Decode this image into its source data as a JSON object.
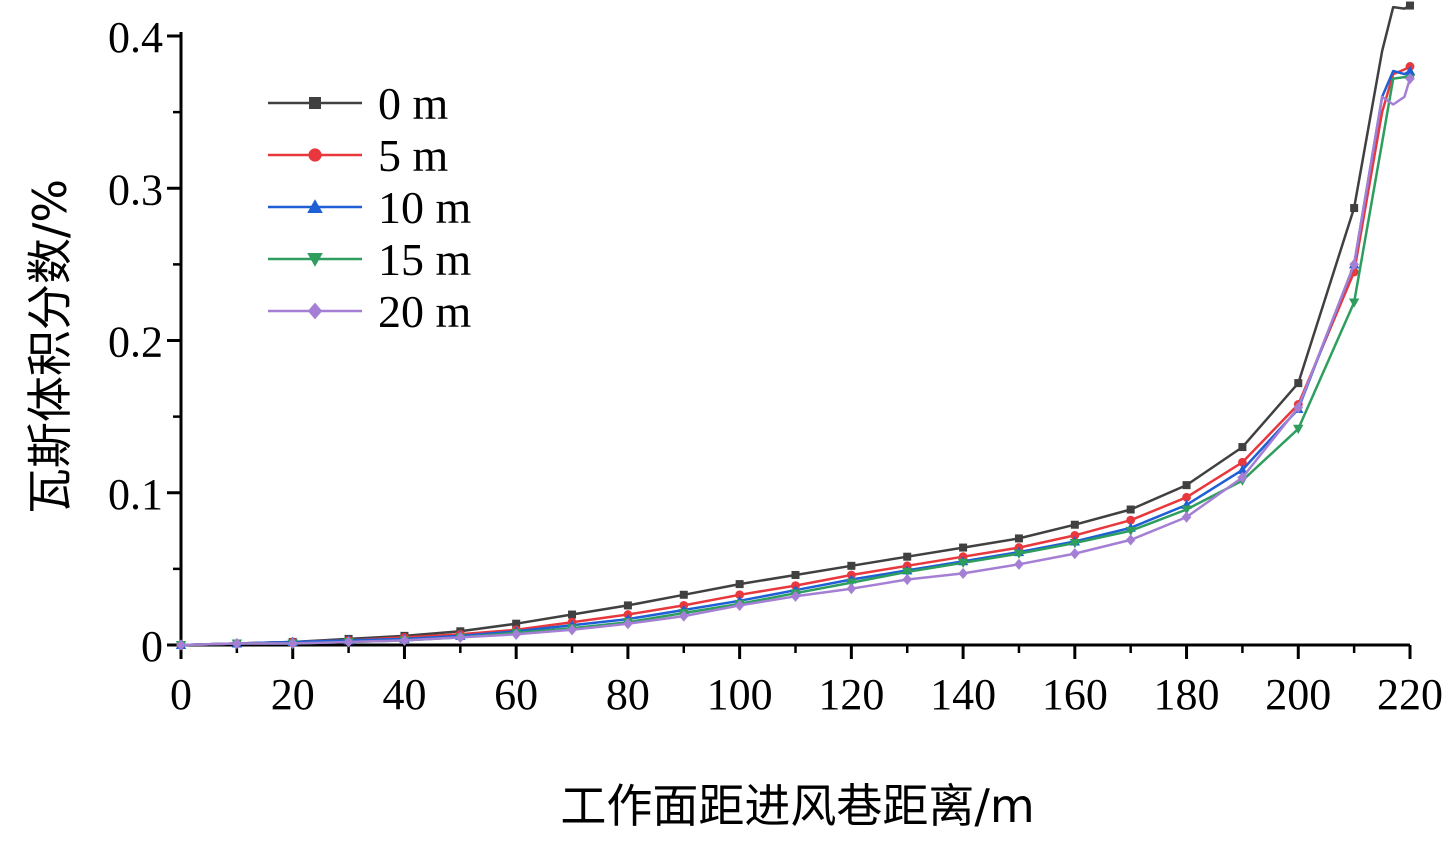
{
  "chart_data": {
    "type": "line",
    "xlabel": "工作面距进风巷距离/m",
    "ylabel": "瓦斯体积分数/%",
    "xlim": [
      0,
      220
    ],
    "ylim": [
      0,
      0.4
    ],
    "xticks": [
      0,
      20,
      40,
      60,
      80,
      100,
      120,
      140,
      160,
      180,
      200,
      220
    ],
    "yticks": [
      0,
      0.1,
      0.2,
      0.3,
      0.4
    ],
    "ytick_labels": [
      "0",
      "0.1",
      "0.2",
      "0.3",
      "0.4"
    ],
    "grid": false,
    "legend_position": "top-left",
    "x": [
      0,
      10,
      20,
      30,
      40,
      50,
      60,
      70,
      80,
      90,
      100,
      110,
      120,
      130,
      140,
      150,
      160,
      170,
      180,
      190,
      200,
      210,
      215,
      217,
      219,
      220
    ],
    "series": [
      {
        "name": "0 m",
        "color": "#404040",
        "marker": "square",
        "values": [
          0,
          0.001,
          0.002,
          0.004,
          0.006,
          0.009,
          0.014,
          0.02,
          0.026,
          0.033,
          0.04,
          0.046,
          0.052,
          0.058,
          0.064,
          0.07,
          0.079,
          0.089,
          0.105,
          0.13,
          0.172,
          0.287,
          0.39,
          0.419,
          0.418,
          0.42
        ]
      },
      {
        "name": "5 m",
        "color": "#e8383d",
        "marker": "circle",
        "values": [
          0,
          0.001,
          0.002,
          0.003,
          0.005,
          0.007,
          0.01,
          0.015,
          0.02,
          0.026,
          0.033,
          0.039,
          0.046,
          0.052,
          0.058,
          0.064,
          0.072,
          0.082,
          0.097,
          0.12,
          0.158,
          0.245,
          0.35,
          0.375,
          0.378,
          0.38
        ]
      },
      {
        "name": "10 m",
        "color": "#1f5fd6",
        "marker": "triangle-up",
        "values": [
          0,
          0.001,
          0.002,
          0.003,
          0.004,
          0.006,
          0.009,
          0.013,
          0.017,
          0.023,
          0.029,
          0.036,
          0.043,
          0.049,
          0.055,
          0.061,
          0.068,
          0.077,
          0.092,
          0.115,
          0.155,
          0.25,
          0.36,
          0.377,
          0.375,
          0.377
        ]
      },
      {
        "name": "15 m",
        "color": "#2e9e5e",
        "marker": "triangle-down",
        "values": [
          0,
          0.001,
          0.001,
          0.002,
          0.003,
          0.005,
          0.008,
          0.011,
          0.015,
          0.021,
          0.027,
          0.034,
          0.041,
          0.048,
          0.054,
          0.06,
          0.067,
          0.075,
          0.089,
          0.108,
          0.142,
          0.225,
          0.33,
          0.372,
          0.373,
          0.372
        ]
      },
      {
        "name": "20 m",
        "color": "#a47fd4",
        "marker": "diamond",
        "values": [
          0,
          0.001,
          0.001,
          0.002,
          0.003,
          0.005,
          0.007,
          0.01,
          0.014,
          0.019,
          0.026,
          0.032,
          0.037,
          0.043,
          0.047,
          0.053,
          0.06,
          0.069,
          0.084,
          0.11,
          0.156,
          0.25,
          0.36,
          0.355,
          0.36,
          0.372
        ]
      }
    ]
  }
}
